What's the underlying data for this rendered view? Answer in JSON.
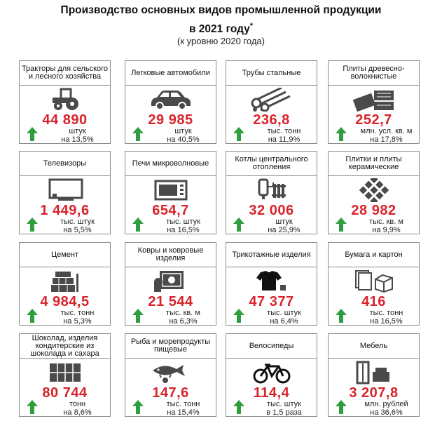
{
  "header": {
    "title_line1": "Производство основных видов промышленной продукции",
    "title_line2": "в 2021 году",
    "title_mark": "*",
    "subtitle": "(к уровню 2020 года)"
  },
  "colors": {
    "value": "#d8232a",
    "arrow": "#2e9e3e",
    "icon": "#4a4a4a"
  },
  "items": [
    {
      "label": "Тракторы для сельского и лесного хозяйства",
      "value": "44 890",
      "unit": "штук",
      "change": "на 13,5%",
      "icon": "tractor-icon"
    },
    {
      "label": "Легковые автомобили",
      "value": "29 985",
      "unit": "штук",
      "change": "на 40,5%",
      "icon": "car-icon"
    },
    {
      "label": "Трубы стальные",
      "value": "236,8",
      "unit": "тыс. тонн",
      "change": "на 11,9%",
      "icon": "pipes-icon"
    },
    {
      "label": "Плиты древесно-волокнистые",
      "value": "252,7",
      "unit": "млн. усл. кв. м",
      "change": "на 17,8%",
      "icon": "boards-icon"
    },
    {
      "label": "Телевизоры",
      "value": "1 449,6",
      "unit": "тыс. штук",
      "change": "на 5,5%",
      "icon": "tv-icon"
    },
    {
      "label": "Печи микроволновые",
      "value": "654,7",
      "unit": "тыс. штук",
      "change": "на 16,5%",
      "icon": "microwave-icon"
    },
    {
      "label": "Котлы центрального отопления",
      "value": "32 006",
      "unit": "штук",
      "change": "на 25,9%",
      "icon": "boiler-icon"
    },
    {
      "label": "Плитки и плиты керамические",
      "value": "28 982",
      "unit": "тыс. кв. м",
      "change": "на 9,9%",
      "icon": "tiles-icon"
    },
    {
      "label": "Цемент",
      "value": "4 984,5",
      "unit": "тыс. тонн",
      "change": "на 5,3%",
      "icon": "cement-icon"
    },
    {
      "label": "Ковры и ковровые изделия",
      "value": "21 544",
      "unit": "тыс. кв. м",
      "change": "на 6,3%",
      "icon": "carpet-icon"
    },
    {
      "label": "Трикотажные изделия",
      "value": "47 377",
      "unit": "тыс. штук",
      "change": "на 6,4%",
      "icon": "clothes-icon"
    },
    {
      "label": "Бумага и картон",
      "value": "416",
      "unit": "тыс. тонн",
      "change": "на 16,5%",
      "icon": "paper-box-icon"
    },
    {
      "label": "Шоколад, изделия кондитерские из шоколада и сахара",
      "value": "80 744",
      "unit": "тонн",
      "change": "на 8,6%",
      "icon": "chocolate-icon"
    },
    {
      "label": "Рыба и морепродукты пищевые",
      "value": "147,6",
      "unit": "тыс. тонн",
      "change": "на 15,4%",
      "icon": "fish-icon"
    },
    {
      "label": "Велосипеды",
      "value": "114,4",
      "unit": "тыс. штук",
      "change": "в 1,5 раза",
      "icon": "bicycle-icon"
    },
    {
      "label": "Мебель",
      "value": "3 207,8",
      "unit": "млн. рублей",
      "change": "на 36,6%",
      "icon": "furniture-icon"
    }
  ]
}
